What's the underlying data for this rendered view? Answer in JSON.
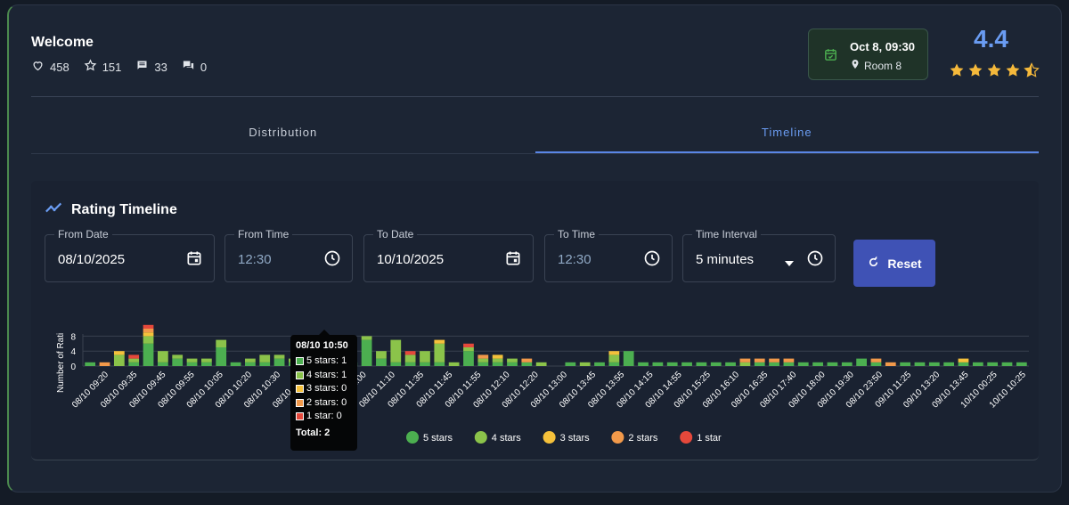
{
  "header": {
    "title": "Welcome",
    "stats": [
      {
        "icon": "heart-icon",
        "value": "458"
      },
      {
        "icon": "star-outline-icon",
        "value": "151"
      },
      {
        "icon": "comment-icon",
        "value": "33"
      },
      {
        "icon": "chat-bubbles-icon",
        "value": "0"
      }
    ],
    "session": {
      "datetime": "Oct 8, 09:30",
      "room": "Room 8"
    },
    "score": "4.4",
    "stars": 4.4,
    "colors": {
      "accent": "#6a9cf2",
      "star": "#f5b93b",
      "session_bg": "#1f3328"
    }
  },
  "tabs": [
    {
      "label": "Distribution",
      "active": false
    },
    {
      "label": "Timeline",
      "active": true
    }
  ],
  "timeline": {
    "title": "Rating Timeline",
    "filters": {
      "from_date": {
        "label": "From Date",
        "value": "08/10/2025"
      },
      "from_time": {
        "label": "From Time",
        "value": "12:30"
      },
      "to_date": {
        "label": "To Date",
        "value": "10/10/2025"
      },
      "to_time": {
        "label": "To Time",
        "value": "12:30"
      },
      "interval": {
        "label": "Time Interval",
        "value": "5 minutes"
      }
    },
    "reset_label": "Reset"
  },
  "tooltip": {
    "title": "08/10 10:50",
    "rows": [
      "5 stars: 1",
      "4 stars: 1",
      "3 stars: 0",
      "2 stars: 0",
      "1 star: 0"
    ],
    "total": "Total: 2"
  },
  "chart_data": {
    "type": "bar",
    "stacked": true,
    "ylabel": "Number of Rati",
    "ylim": [
      0,
      10
    ],
    "yticks": [
      "0",
      "4",
      "8"
    ],
    "xtick_labels": [
      "08/10 09:20",
      "08/10 09:35",
      "08/10 09:45",
      "08/10 09:55",
      "08/10 10:05",
      "08/10 10:20",
      "08/10 10:30",
      "08/10 10:40",
      "08/10 10:50",
      "08/10 11:00",
      "08/10 11:10",
      "08/10 11:35",
      "08/10 11:45",
      "08/10 11:55",
      "08/10 12:10",
      "08/10 12:20",
      "08/10 13:00",
      "08/10 13:45",
      "08/10 13:55",
      "08/10 14:15",
      "08/10 14:55",
      "08/10 15:25",
      "08/10 16:10",
      "08/10 16:35",
      "08/10 17:40",
      "08/10 18:00",
      "08/10 19:30",
      "08/10 23:50",
      "09/10 11:25",
      "09/10 13:20",
      "09/10 13:45",
      "10/10 00:25",
      "10/10 10:25"
    ],
    "series": [
      {
        "name": "5 stars",
        "color": "#4caf50",
        "values": [
          1,
          0,
          0,
          1,
          6,
          1,
          2,
          1,
          1,
          5,
          1,
          1,
          1,
          2,
          1,
          1,
          1,
          1,
          1,
          7,
          2,
          1,
          1,
          1,
          1,
          0,
          4,
          1,
          1,
          1,
          1,
          0,
          0,
          1,
          0,
          1,
          1,
          4,
          1,
          1,
          1,
          1,
          1,
          1,
          1,
          0,
          1,
          1,
          1,
          1,
          1,
          1,
          1,
          2,
          1,
          0,
          1,
          1,
          1,
          1,
          1,
          1,
          1,
          1,
          1
        ]
      },
      {
        "name": "4 stars",
        "color": "#8bc34a",
        "values": [
          0,
          0,
          3,
          1,
          2,
          3,
          1,
          1,
          1,
          2,
          0,
          1,
          2,
          1,
          1,
          1,
          0,
          1,
          0,
          1,
          2,
          6,
          2,
          3,
          5,
          1,
          1,
          1,
          1,
          1,
          0,
          1,
          0,
          0,
          1,
          0,
          2,
          0,
          0,
          0,
          0,
          0,
          0,
          0,
          0,
          1,
          0,
          0,
          0,
          0,
          0,
          0,
          0,
          0,
          0,
          0,
          0,
          0,
          0,
          0,
          0,
          0,
          0,
          0,
          0
        ]
      },
      {
        "name": "3 stars",
        "color": "#f5c13b",
        "values": [
          0,
          0,
          1,
          0,
          1,
          0,
          0,
          0,
          0,
          0,
          0,
          0,
          0,
          0,
          0,
          0,
          0,
          0,
          0,
          0,
          0,
          0,
          0,
          0,
          1,
          0,
          0,
          0,
          1,
          0,
          0,
          0,
          0,
          0,
          0,
          0,
          1,
          0,
          0,
          0,
          0,
          0,
          0,
          0,
          0,
          0,
          0,
          0,
          0,
          0,
          0,
          0,
          0,
          0,
          0,
          0,
          0,
          0,
          0,
          0,
          1,
          0,
          0,
          0,
          0
        ]
      },
      {
        "name": "2 stars",
        "color": "#f2994a",
        "values": [
          0,
          1,
          0,
          0,
          1,
          0,
          0,
          0,
          0,
          0,
          0,
          0,
          0,
          0,
          0,
          0,
          0,
          0,
          0,
          0,
          0,
          0,
          0,
          0,
          0,
          0,
          0,
          1,
          0,
          0,
          1,
          0,
          0,
          0,
          0,
          0,
          0,
          0,
          0,
          0,
          0,
          0,
          0,
          0,
          0,
          1,
          1,
          1,
          1,
          0,
          0,
          0,
          0,
          0,
          1,
          1,
          0,
          0,
          0,
          0,
          0,
          0,
          0,
          0,
          0
        ]
      },
      {
        "name": "1 star",
        "color": "#e5483b",
        "values": [
          0,
          0,
          0,
          1,
          1,
          0,
          0,
          0,
          0,
          0,
          0,
          0,
          0,
          0,
          0,
          0,
          0,
          0,
          0,
          0,
          0,
          0,
          1,
          0,
          0,
          0,
          1,
          0,
          0,
          0,
          0,
          0,
          0,
          0,
          0,
          0,
          0,
          0,
          0,
          0,
          0,
          0,
          0,
          0,
          0,
          0,
          0,
          0,
          0,
          0,
          0,
          0,
          0,
          0,
          0,
          0,
          0,
          0,
          0,
          0,
          0,
          0,
          0,
          0,
          0
        ]
      }
    ],
    "grid": true,
    "legend": "bottom-center"
  }
}
